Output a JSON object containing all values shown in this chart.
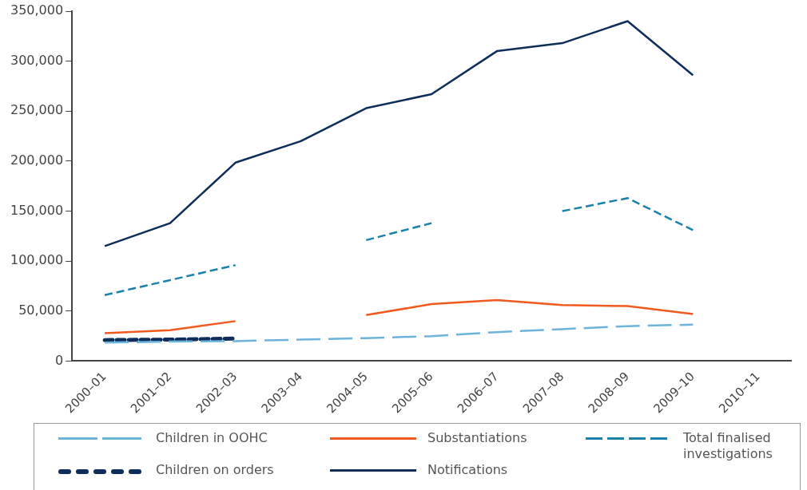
{
  "chart_data": {
    "type": "line",
    "categories": [
      "2000–01",
      "2001–02",
      "2002–03",
      "2003–04",
      "2004–05",
      "2005–06",
      "2006–07",
      "2007–08",
      "2008–09",
      "2009–10",
      "2010–11"
    ],
    "series": [
      {
        "name": "Children in OOHC",
        "color": "#6cb4dc",
        "line_style": "dashed",
        "values": [
          18500,
          19500,
          20000,
          21500,
          23000,
          25000,
          29000,
          32000,
          35000,
          36500,
          null
        ]
      },
      {
        "name": "Substantiations",
        "color": "#f05a1e",
        "line_style": "solid",
        "values": [
          28000,
          31000,
          40000,
          null,
          46000,
          57000,
          61000,
          56000,
          55000,
          47000,
          null
        ]
      },
      {
        "name": "Total finalised investigations",
        "color": "#1a82aa",
        "line_style": "dashed",
        "values": [
          66000,
          81000,
          96000,
          null,
          121000,
          138000,
          null,
          150000,
          163000,
          131000,
          null
        ]
      },
      {
        "name": "Children on orders",
        "color": "#0d2d5a",
        "line_style": "dashed",
        "values": [
          21000,
          21500,
          22500,
          null,
          null,
          null,
          null,
          null,
          null,
          null,
          null
        ]
      },
      {
        "name": "Notifications",
        "color": "#0d2d5a",
        "line_style": "solid",
        "values": [
          115000,
          138000,
          198500,
          220000,
          253000,
          267000,
          310000,
          318000,
          340000,
          286000,
          null
        ]
      }
    ],
    "ylim": [
      0,
      350000
    ],
    "yticks": [
      {
        "value": 0,
        "label": "0"
      },
      {
        "value": 50000,
        "label": "50,000"
      },
      {
        "value": 100000,
        "label": "100,000"
      },
      {
        "value": 150000,
        "label": "150,000"
      },
      {
        "value": 200000,
        "label": "200,000"
      },
      {
        "value": 250000,
        "label": "250,000"
      },
      {
        "value": 300000,
        "label": "300,000"
      },
      {
        "value": 350000,
        "label": "350,000"
      }
    ],
    "grid": false,
    "legend": "bottom",
    "marker": "none"
  }
}
